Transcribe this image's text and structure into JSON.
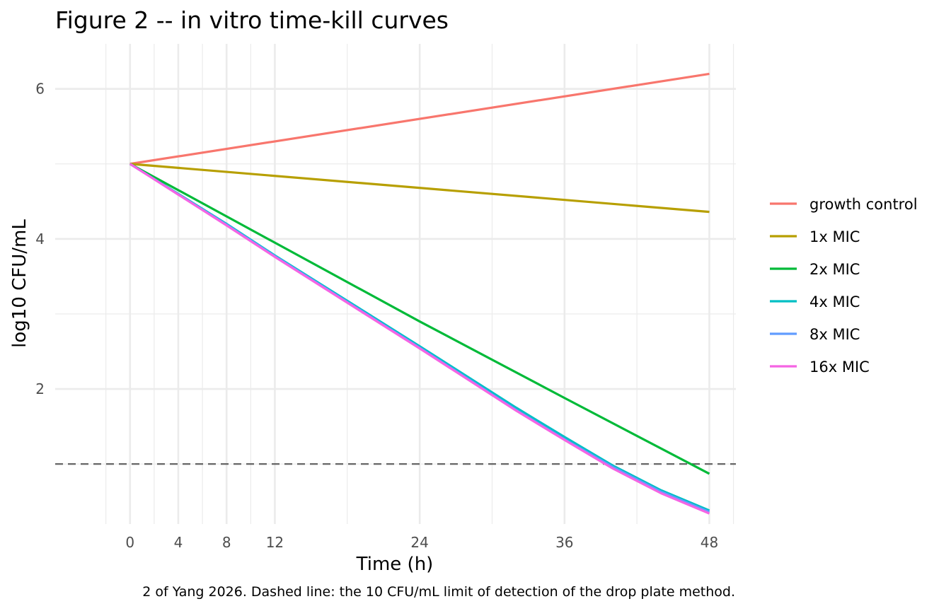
{
  "chart_data": {
    "type": "line",
    "title": "Figure 2 -- in vitro time-kill curves",
    "xlabel": "Time (h)",
    "ylabel": "log10 CFU/mL",
    "caption": "2 of Yang 2026. Dashed line: the 10 CFU/mL limit of detection of the drop plate method.",
    "xlim": [
      -6.2,
      50.2
    ],
    "ylim": [
      0.2,
      6.6
    ],
    "x_ticks": [
      0,
      4,
      8,
      12,
      24,
      36,
      48
    ],
    "x_tick_labels": [
      "0",
      "4",
      "8",
      "12",
      "24",
      "36",
      "48"
    ],
    "x_minor_grid": [
      -2,
      2,
      6,
      10,
      18,
      30,
      42,
      50
    ],
    "y_ticks": [
      2,
      4,
      6
    ],
    "y_tick_labels": [
      "2",
      "4",
      "6"
    ],
    "y_minor_grid": [
      1,
      3,
      5
    ],
    "grid": true,
    "legend_position": "right",
    "reference_line": {
      "y": 1,
      "style": "dashed",
      "color": "#666666"
    },
    "series": [
      {
        "name": "growth control",
        "color": "#F8766D",
        "x": [
          0,
          48
        ],
        "y": [
          5.0,
          6.2
        ]
      },
      {
        "name": "1x MIC",
        "color": "#B79F00",
        "x": [
          0,
          48
        ],
        "y": [
          5.0,
          4.36
        ]
      },
      {
        "name": "2x MIC",
        "color": "#00BA38",
        "x": [
          0,
          8,
          12,
          24,
          36,
          48
        ],
        "y": [
          5.0,
          4.3,
          3.95,
          2.9,
          1.88,
          0.87
        ]
      },
      {
        "name": "4x MIC",
        "color": "#00BFC4",
        "x": [
          0,
          8,
          12,
          24,
          32,
          36,
          40,
          44,
          48
        ],
        "y": [
          5.0,
          4.2,
          3.78,
          2.57,
          1.75,
          1.36,
          0.98,
          0.65,
          0.38
        ]
      },
      {
        "name": "8x MIC",
        "color": "#619CFF",
        "x": [
          0,
          8,
          12,
          24,
          32,
          36,
          40,
          44,
          48
        ],
        "y": [
          5.0,
          4.19,
          3.77,
          2.55,
          1.72,
          1.33,
          0.96,
          0.63,
          0.36
        ]
      },
      {
        "name": "16x MIC",
        "color": "#F564E3",
        "x": [
          0,
          8,
          12,
          24,
          32,
          36,
          40,
          44,
          48
        ],
        "y": [
          5.0,
          4.18,
          3.76,
          2.54,
          1.71,
          1.32,
          0.94,
          0.61,
          0.34
        ]
      }
    ]
  }
}
